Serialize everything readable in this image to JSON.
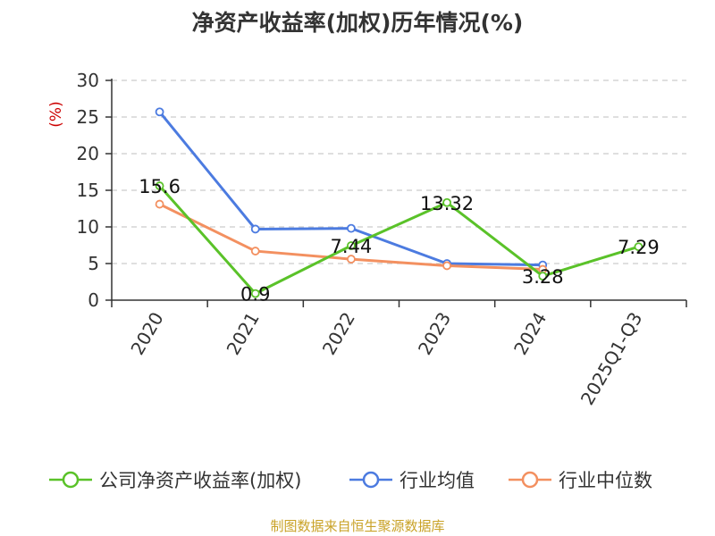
{
  "title": "净资产收益率(加权)历年情况(%)",
  "source": "制图数据来自恒生聚源数据库",
  "chart_data": {
    "type": "line",
    "title": "净资产收益率(加权)历年情况(%)",
    "ylabel": "(%)",
    "xlabel": "",
    "categories": [
      "2020",
      "2021",
      "2022",
      "2023",
      "2024",
      "2025Q1-Q3"
    ],
    "ylim": [
      0,
      30
    ],
    "yticks": [
      0,
      5,
      10,
      15,
      20,
      25,
      30
    ],
    "grid": true,
    "legend_position": "bottom",
    "series": [
      {
        "name": "公司净资产收益率(加权)",
        "color": "#5ac229",
        "values": [
          15.6,
          0.9,
          7.44,
          13.32,
          3.28,
          7.29
        ],
        "labels": [
          "15.6",
          "0.9",
          "7.44",
          "13.32",
          "3.28",
          "7.29"
        ]
      },
      {
        "name": "行业均值",
        "color": "#4c7be0",
        "values": [
          25.7,
          9.7,
          9.8,
          5.0,
          4.8,
          null
        ]
      },
      {
        "name": "行业中位数",
        "color": "#f39060",
        "values": [
          13.1,
          6.7,
          5.6,
          4.7,
          4.2,
          null
        ]
      }
    ]
  }
}
